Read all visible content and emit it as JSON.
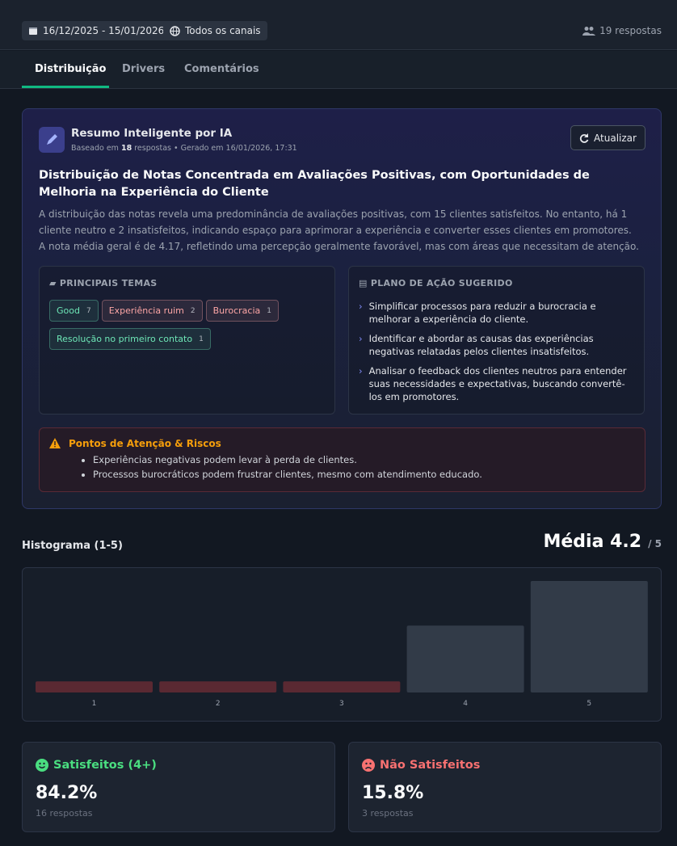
{
  "header": {
    "date_range": "16/12/2025 - 15/01/2026",
    "channel": "Todos os canais",
    "responses": "19 respostas"
  },
  "tabs": [
    "Distribuição",
    "Drivers",
    "Comentários"
  ],
  "summary": {
    "title": "Resumo Inteligente por IA",
    "meta": {
      "prefix": "Baseado em",
      "count": "18",
      "suffix": "respostas • Gerado em 16/01/2026, 17:31"
    },
    "refresh": "Atualizar",
    "headline": "Distribuição de Notas Concentrada em Avaliações Positivas, com Oportunidades de Melhoria na Experiência do Cliente",
    "body": "A distribuição das notas revela uma predominância de avaliações positivas, com 15 clientes satisfeitos. No entanto, há 1 cliente neutro e 2 insatisfeitos, indicando espaço para aprimorar a experiência e converter esses clientes em promotores. A nota média geral é de 4.17, refletindo uma percepção geralmente favorável, mas com áreas que necessitam de atenção.",
    "themes": {
      "title": "PRINCIPAIS TEMAS",
      "tags": [
        {
          "label": "Good",
          "count": 7,
          "color": "#6ee7b7"
        },
        {
          "label": "Experiência ruim",
          "count": 2,
          "color": "#fca5a5"
        },
        {
          "label": "Burocracia",
          "count": 1,
          "color": "#fca5a5"
        },
        {
          "label": "Resolução no primeiro contato",
          "count": 1,
          "color": "#6ee7b7"
        }
      ]
    },
    "actions": {
      "title": "PLANO DE AÇÃO SUGERIDO",
      "items": [
        "Simplificar processos para reduzir a burocracia e melhorar a experiência do cliente.",
        "Identificar e abordar as causas das experiências negativas relatadas pelos clientes insatisfeitos.",
        "Analisar o feedback dos clientes neutros para entender suas necessidades e expectativas, buscando convertê-los em promotores."
      ]
    },
    "risks": {
      "title": "Pontos de Atenção & Riscos",
      "items": [
        "Experiências negativas podem levar à perda de clientes.",
        "Processos burocráticos podem frustrar clientes, mesmo com atendimento educado."
      ]
    }
  },
  "chart_data": {
    "type": "bar",
    "title": "Histograma (1-5)",
    "mean": "Média 4.2",
    "mean_suffix": "/ 5",
    "categories": [
      "1",
      "2",
      "3",
      "4",
      "5"
    ],
    "values": [
      1,
      1,
      1,
      6,
      10
    ],
    "colors": [
      "#5a2932",
      "#5a2932",
      "#5a2932",
      "#323b48",
      "#323b48"
    ]
  },
  "stats": [
    {
      "title": "Satisfeitos (4+)",
      "value": "84.2%",
      "sub": "16 respostas",
      "color": "#4ade80"
    },
    {
      "title": "Não Satisfeitos",
      "value": "15.8%",
      "sub": "3 respostas",
      "color": "#f87171"
    }
  ]
}
